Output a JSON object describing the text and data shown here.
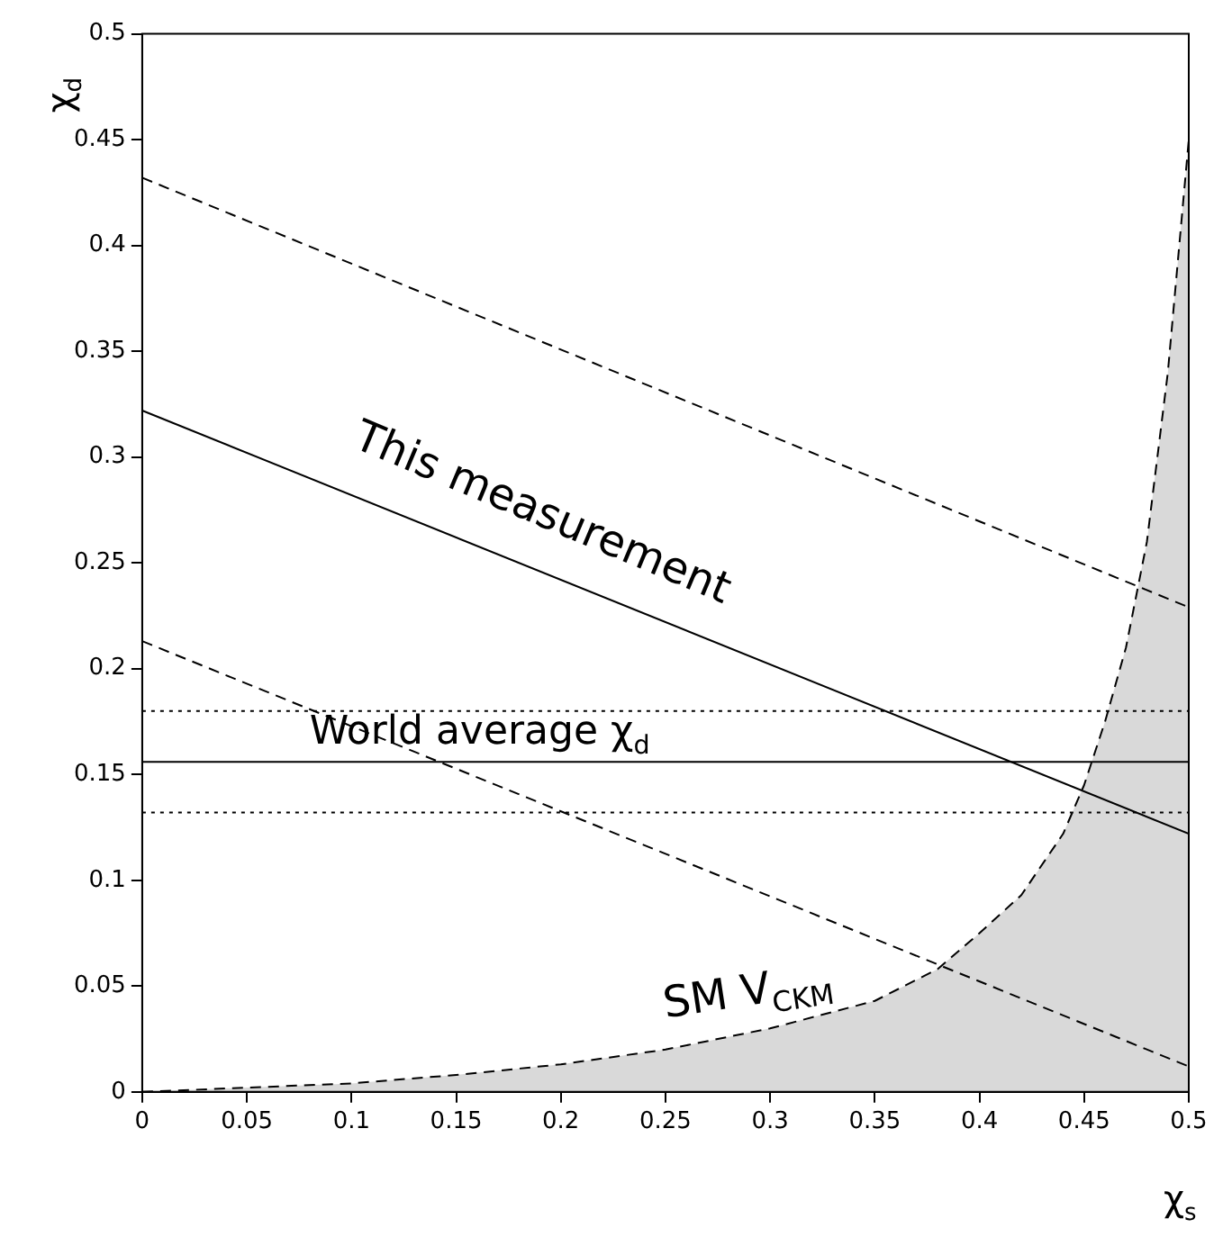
{
  "chart_data": {
    "type": "line",
    "xlabel": "χ$_{s}$",
    "ylabel": "χ$_{d}$",
    "xlim": [
      0,
      0.5
    ],
    "ylim": [
      0,
      0.5
    ],
    "xticks": [
      0,
      0.05,
      0.1,
      0.15,
      0.2,
      0.25,
      0.3,
      0.35,
      0.4,
      0.45,
      0.5
    ],
    "yticks": [
      0,
      0.05,
      0.1,
      0.15,
      0.2,
      0.25,
      0.3,
      0.35,
      0.4,
      0.45,
      0.5
    ],
    "grid": false,
    "legend": false,
    "marker": "none",
    "series": [
      {
        "color": "#000000",
        "line_style": "solid",
        "x": [
          0,
          0.5
        ],
        "values": [
          0.322,
          0.122
        ]
      },
      {
        "color": "#000000",
        "line_style": "dashed",
        "x": [
          0,
          0.5
        ],
        "values": [
          0.432,
          0.229
        ]
      },
      {
        "color": "#000000",
        "line_style": "dashed",
        "x": [
          0,
          0.5
        ],
        "values": [
          0.213,
          0.012
        ]
      },
      {
        "type": "area",
        "color": "#000000",
        "line_style": "dashed",
        "x": [
          0,
          0.05,
          0.1,
          0.15,
          0.2,
          0.25,
          0.3,
          0.35,
          0.38,
          0.4,
          0.42,
          0.44,
          0.45,
          0.46,
          0.47,
          0.48,
          0.49,
          0.5
        ],
        "values": [
          0,
          0.002,
          0.004,
          0.008,
          0.013,
          0.02,
          0.03,
          0.043,
          0.058,
          0.075,
          0.093,
          0.122,
          0.145,
          0.175,
          0.21,
          0.26,
          0.34,
          0.45
        ]
      }
    ],
    "ref_lines": [
      {
        "axis": "y",
        "value": 0.156,
        "label": "World average χ$_{d}$",
        "line_style": "solid",
        "color": "#000000"
      },
      {
        "axis": "y",
        "value": 0.18,
        "label": null,
        "line_style": "dotted",
        "color": "#000000"
      },
      {
        "axis": "y",
        "value": 0.132,
        "label": null,
        "line_style": "dotted",
        "color": "#000000"
      }
    ],
    "annotations": [
      "This measurement",
      "SM V$_{CKM}$"
    ]
  }
}
